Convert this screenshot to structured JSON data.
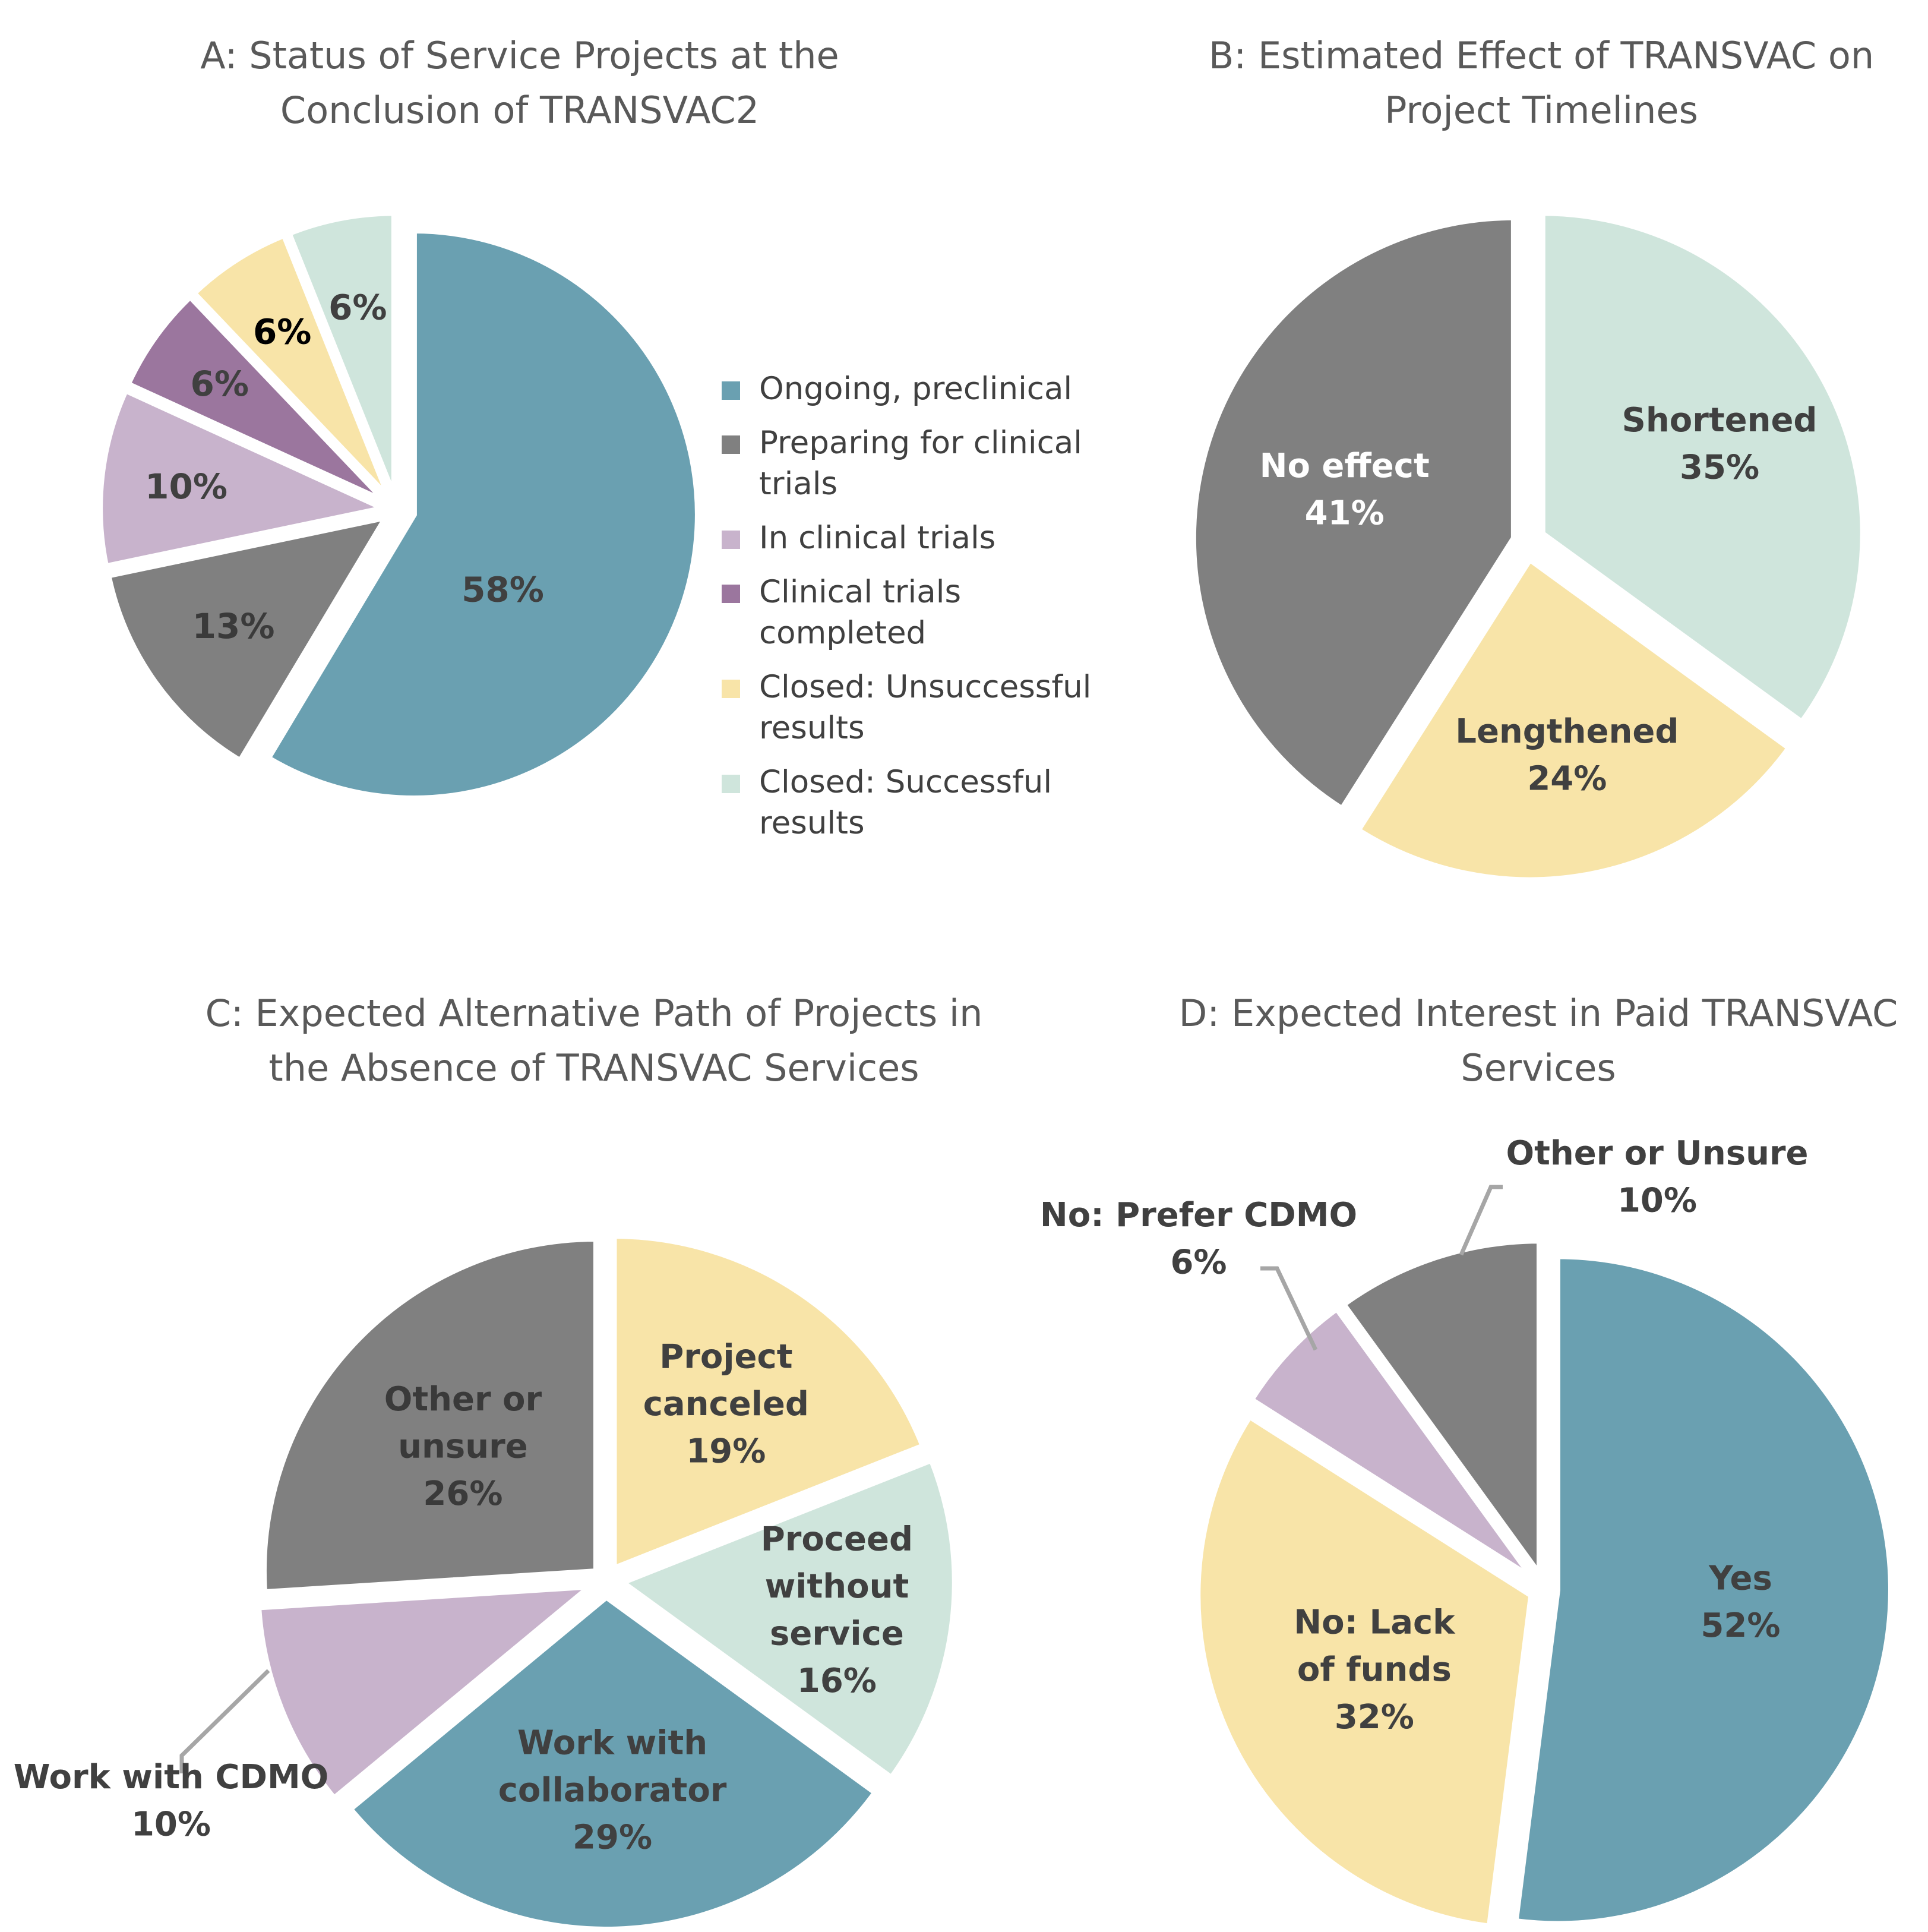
{
  "chart_data": [
    {
      "id": "A",
      "type": "pie",
      "title_lines": [
        "A: Status of Service Projects at the",
        "Conclusion of TRANSVAC2"
      ],
      "slices": [
        {
          "label": "Ongoing, preclinical",
          "value": 58,
          "value_text": "58%",
          "color": "#6aa0b1",
          "text_color": "#404040",
          "bold": true
        },
        {
          "label": "Preparing for clinical trials",
          "value": 13,
          "value_text": "13%",
          "color": "#808080",
          "text_color": "#3a3a3a",
          "bold": true
        },
        {
          "label": "In clinical trials",
          "value": 10,
          "value_text": "10%",
          "color": "#c8b3cc",
          "text_color": "#404040",
          "bold": true
        },
        {
          "label": "Clinical trials completed",
          "value": 6,
          "value_text": "6%",
          "color": "#9b769e",
          "text_color": "#404040",
          "bold": true
        },
        {
          "label": "Closed: Unsuccessful results",
          "value": 6,
          "value_text": "6%",
          "color": "#f8e4a8",
          "text_color": "#000000",
          "bold": true
        },
        {
          "label": "Closed: Successful results",
          "value": 6,
          "value_text": "6%",
          "color": "#cfe5dc",
          "text_color": "#404040",
          "bold": true
        }
      ],
      "legend_items": [
        {
          "label": "Ongoing, preclinical",
          "color": "#6aa0b1"
        },
        {
          "label": "Preparing for clinical trials",
          "color": "#808080"
        },
        {
          "label": "In clinical trials",
          "color": "#c8b3cc"
        },
        {
          "label": "Clinical trials completed",
          "color": "#9b769e"
        },
        {
          "label": "Closed: Unsuccessful results",
          "color": "#f8e4a8"
        },
        {
          "label": "Closed: Successful results",
          "color": "#cfe5dc"
        }
      ]
    },
    {
      "id": "B",
      "type": "pie",
      "title_lines": [
        "B: Estimated Effect of TRANSVAC on",
        "Project Timelines"
      ],
      "slices": [
        {
          "label": "Shortened",
          "value": 35,
          "value_text": "35%",
          "color": "#cfe5dc",
          "text_color": "#404040",
          "bold": true
        },
        {
          "label": "Lengthened",
          "value": 24,
          "value_text": "24%",
          "color": "#f8e4a8",
          "text_color": "#404040",
          "bold": true
        },
        {
          "label": "No effect",
          "value": 41,
          "value_text": "41%",
          "color": "#808080",
          "text_color": "#ffffff",
          "bold": true
        }
      ]
    },
    {
      "id": "C",
      "type": "pie",
      "title_lines": [
        "C: Expected Alternative Path of Projects in",
        "the Absence of TRANSVAC Services"
      ],
      "slices": [
        {
          "label_lines": [
            "Project",
            "canceled"
          ],
          "value": 19,
          "value_text": "19%",
          "color": "#f8e4a8",
          "text_color": "#404040",
          "bold": true
        },
        {
          "label_lines": [
            "Proceed",
            "without",
            "service"
          ],
          "value": 16,
          "value_text": "16%",
          "color": "#cfe5dc",
          "text_color": "#404040",
          "bold": true
        },
        {
          "label_lines": [
            "Work with",
            "collaborator"
          ],
          "value": 29,
          "value_text": "29%",
          "color": "#6aa0b1",
          "text_color": "#404040",
          "bold": true
        },
        {
          "label_lines": [
            "Work with CDMO"
          ],
          "value": 10,
          "value_text": "10%",
          "color": "#c8b3cc",
          "text_color": "#404040",
          "bold": true,
          "outside": true
        },
        {
          "label_lines": [
            "Other or",
            "unsure"
          ],
          "value": 26,
          "value_text": "26%",
          "color": "#808080",
          "text_color": "#3a3a3a",
          "bold": true
        }
      ]
    },
    {
      "id": "D",
      "type": "pie",
      "title_lines": [
        "D: Expected Interest in Paid TRANSVAC",
        "Services"
      ],
      "slices": [
        {
          "label_lines": [
            "Yes"
          ],
          "value": 52,
          "value_text": "52%",
          "color": "#6aa0b1",
          "text_color": "#404040",
          "bold": true
        },
        {
          "label_lines": [
            "No: Lack",
            "of funds"
          ],
          "value": 32,
          "value_text": "32%",
          "color": "#f8e4a8",
          "text_color": "#404040",
          "bold": true
        },
        {
          "label_lines": [
            "No: Prefer CDMO"
          ],
          "value": 6,
          "value_text": "6%",
          "color": "#c8b3cc",
          "text_color": "#404040",
          "bold": true,
          "outside": true
        },
        {
          "label_lines": [
            "Other or Unsure"
          ],
          "value": 10,
          "value_text": "10%",
          "color": "#808080",
          "text_color": "#404040",
          "bold": true,
          "outside": true
        }
      ]
    }
  ]
}
